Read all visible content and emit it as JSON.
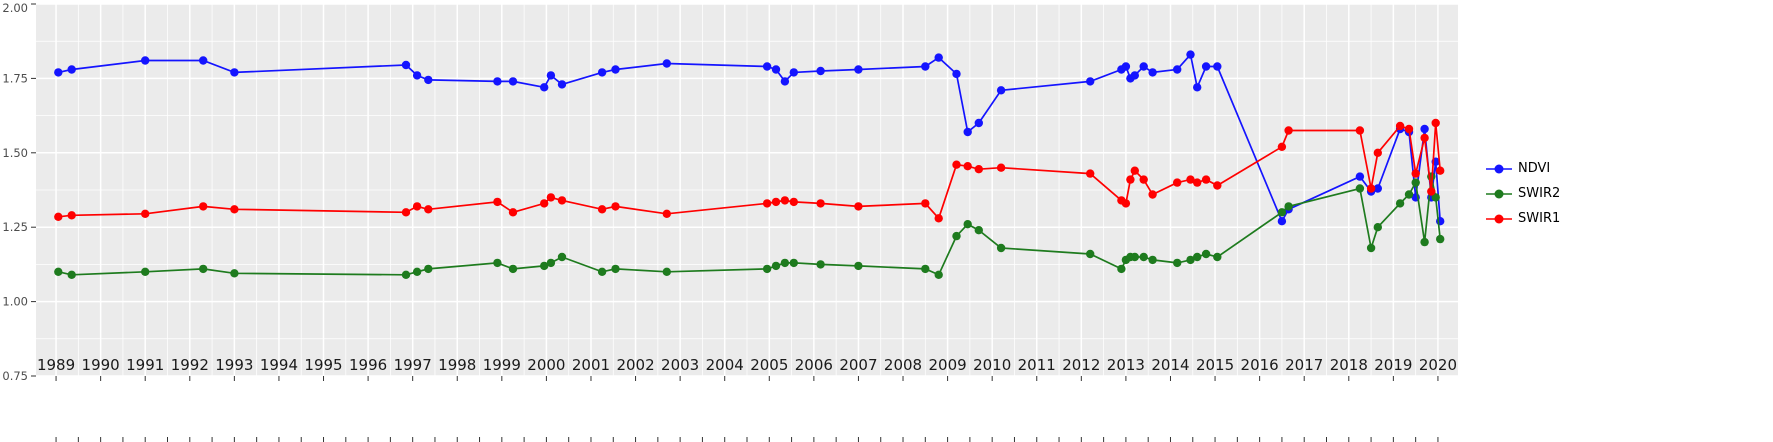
{
  "style": {
    "background": "#FFFFFF",
    "panel_background": "#EBEBEB",
    "grid_color": "#FFFFFF",
    "axis_text_color": "#4D4D4D",
    "x_label_color": "#1A1A1A",
    "tick_color": "#333333"
  },
  "chart_data": {
    "type": "line",
    "title": "",
    "xlabel": "",
    "ylabel": "",
    "grid": true,
    "legend_position": "right",
    "xlim": [
      1988.55,
      2020.45
    ],
    "ylim": [
      0.75,
      2.0
    ],
    "x_ticks": [
      1989,
      1990,
      1991,
      1992,
      1993,
      1994,
      1995,
      1996,
      1997,
      1998,
      1999,
      2000,
      2001,
      2002,
      2003,
      2004,
      2005,
      2006,
      2007,
      2008,
      2009,
      2010,
      2011,
      2012,
      2013,
      2014,
      2015,
      2016,
      2017,
      2018,
      2019,
      2020
    ],
    "y_ticks": [
      2.0,
      1.75,
      1.5,
      1.25,
      1.0,
      0.75
    ],
    "y_tick_labels": [
      "2.00",
      "1.75",
      "1.50",
      "1.25",
      "1.00",
      "0.75"
    ],
    "x": [
      1989.05,
      1989.35,
      1991.0,
      1992.3,
      1993.0,
      1996.85,
      1997.1,
      1997.35,
      1998.9,
      1999.25,
      1999.95,
      2000.1,
      2000.35,
      2001.25,
      2001.55,
      2002.7,
      2004.95,
      2005.15,
      2005.35,
      2005.55,
      2006.15,
      2007.0,
      2008.5,
      2008.8,
      2009.2,
      2009.45,
      2009.7,
      2010.2,
      2012.2,
      2012.9,
      2013.0,
      2013.1,
      2013.2,
      2013.4,
      2013.6,
      2014.15,
      2014.45,
      2014.6,
      2014.8,
      2015.05,
      2016.5,
      2016.65,
      2018.25,
      2018.5,
      2018.65,
      2019.15,
      2019.35,
      2019.5,
      2019.7,
      2019.85,
      2019.95,
      2020.05
    ],
    "series": [
      {
        "name": "NDVI",
        "color": "#1414FF",
        "values": [
          1.77,
          1.78,
          1.81,
          1.81,
          1.77,
          1.795,
          1.76,
          1.745,
          1.74,
          1.74,
          1.72,
          1.76,
          1.73,
          1.77,
          1.78,
          1.8,
          1.79,
          1.78,
          1.74,
          1.77,
          1.775,
          1.78,
          1.79,
          1.82,
          1.765,
          1.57,
          1.6,
          1.71,
          1.74,
          1.78,
          1.79,
          1.75,
          1.76,
          1.79,
          1.77,
          1.78,
          1.83,
          1.72,
          1.79,
          1.79,
          1.27,
          1.31,
          1.42,
          1.37,
          1.38,
          1.58,
          1.57,
          1.35,
          1.58,
          1.35,
          1.47,
          1.27
        ]
      },
      {
        "name": "SWIR2",
        "color": "#1E7B1E",
        "values": [
          1.1,
          1.09,
          1.1,
          1.11,
          1.095,
          1.09,
          1.1,
          1.11,
          1.13,
          1.11,
          1.12,
          1.13,
          1.15,
          1.1,
          1.11,
          1.1,
          1.11,
          1.12,
          1.13,
          1.13,
          1.125,
          1.12,
          1.11,
          1.09,
          1.22,
          1.26,
          1.24,
          1.18,
          1.16,
          1.11,
          1.14,
          1.15,
          1.15,
          1.15,
          1.14,
          1.13,
          1.14,
          1.15,
          1.16,
          1.15,
          1.3,
          1.32,
          1.38,
          1.18,
          1.25,
          1.33,
          1.36,
          1.4,
          1.2,
          1.42,
          1.35,
          1.21
        ]
      },
      {
        "name": "SWIR1",
        "color": "#FF0000",
        "values": [
          1.285,
          1.29,
          1.295,
          1.32,
          1.31,
          1.3,
          1.32,
          1.31,
          1.335,
          1.3,
          1.33,
          1.35,
          1.34,
          1.31,
          1.32,
          1.295,
          1.33,
          1.335,
          1.34,
          1.335,
          1.33,
          1.32,
          1.33,
          1.28,
          1.46,
          1.455,
          1.445,
          1.45,
          1.43,
          1.34,
          1.33,
          1.41,
          1.44,
          1.41,
          1.36,
          1.4,
          1.41,
          1.4,
          1.41,
          1.39,
          1.52,
          1.575,
          1.575,
          1.38,
          1.5,
          1.59,
          1.58,
          1.43,
          1.55,
          1.37,
          1.6,
          1.44
        ]
      }
    ]
  }
}
